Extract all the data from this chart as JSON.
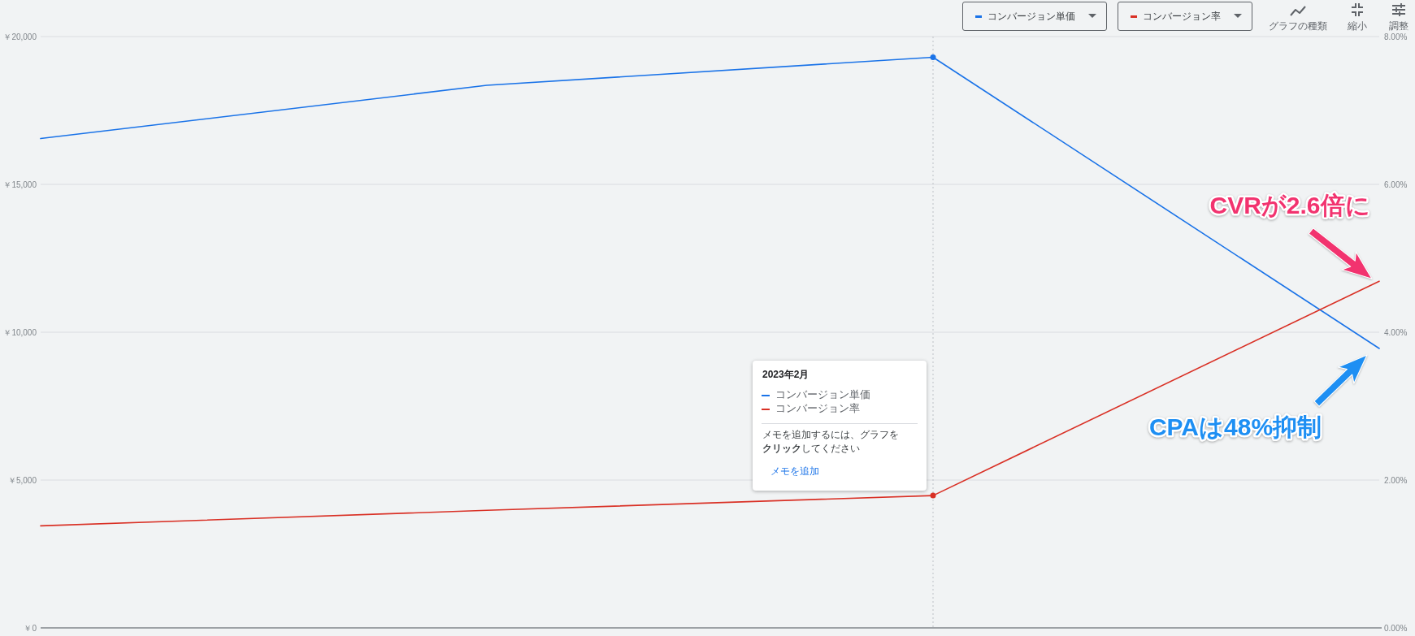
{
  "chart_data": {
    "type": "line",
    "categories": [
      null,
      null,
      "2023年2月",
      null
    ],
    "series": [
      {
        "name": "コンバージョン単価",
        "color": "#1a73e8",
        "values": [
          16550,
          18350,
          19300,
          9450
        ]
      },
      {
        "name": "コンバージョン率",
        "color": "#d93025",
        "values": [
          1.38,
          1.59,
          1.79,
          4.69
        ],
        "axis": "y2"
      }
    ],
    "ylim": [
      0,
      20000
    ],
    "yticks": [
      {
        "value": 0,
        "label": "￥0"
      },
      {
        "value": 5000,
        "label": "￥5,000"
      },
      {
        "value": 10000,
        "label": "￥10,000"
      },
      {
        "value": 15000,
        "label": "￥15,000"
      },
      {
        "value": 20000,
        "label": "￥20,000"
      }
    ],
    "y2lim": [
      0,
      8
    ],
    "y2ticks": [
      {
        "value": 0,
        "label": "0.00%"
      },
      {
        "value": 2,
        "label": "2.00%"
      },
      {
        "value": 4,
        "label": "4.00%"
      },
      {
        "value": 6,
        "label": "6.00%"
      },
      {
        "value": 8,
        "label": "8.00%"
      }
    ],
    "grid": "y",
    "legend": "top right",
    "tick_labels": "y",
    "ref_lines": [
      {
        "axis": "x",
        "value": "2023年2月",
        "color": "#bdc1c6",
        "line_style": "dotted"
      }
    ],
    "annotations": [
      "CVRが2.6倍に",
      "CPAは48%抑制",
      "メモを追加するには、グラフを",
      "クリック",
      "してください",
      "メモを追加",
      "グラフの種類",
      "縮小",
      "調整"
    ]
  }
}
